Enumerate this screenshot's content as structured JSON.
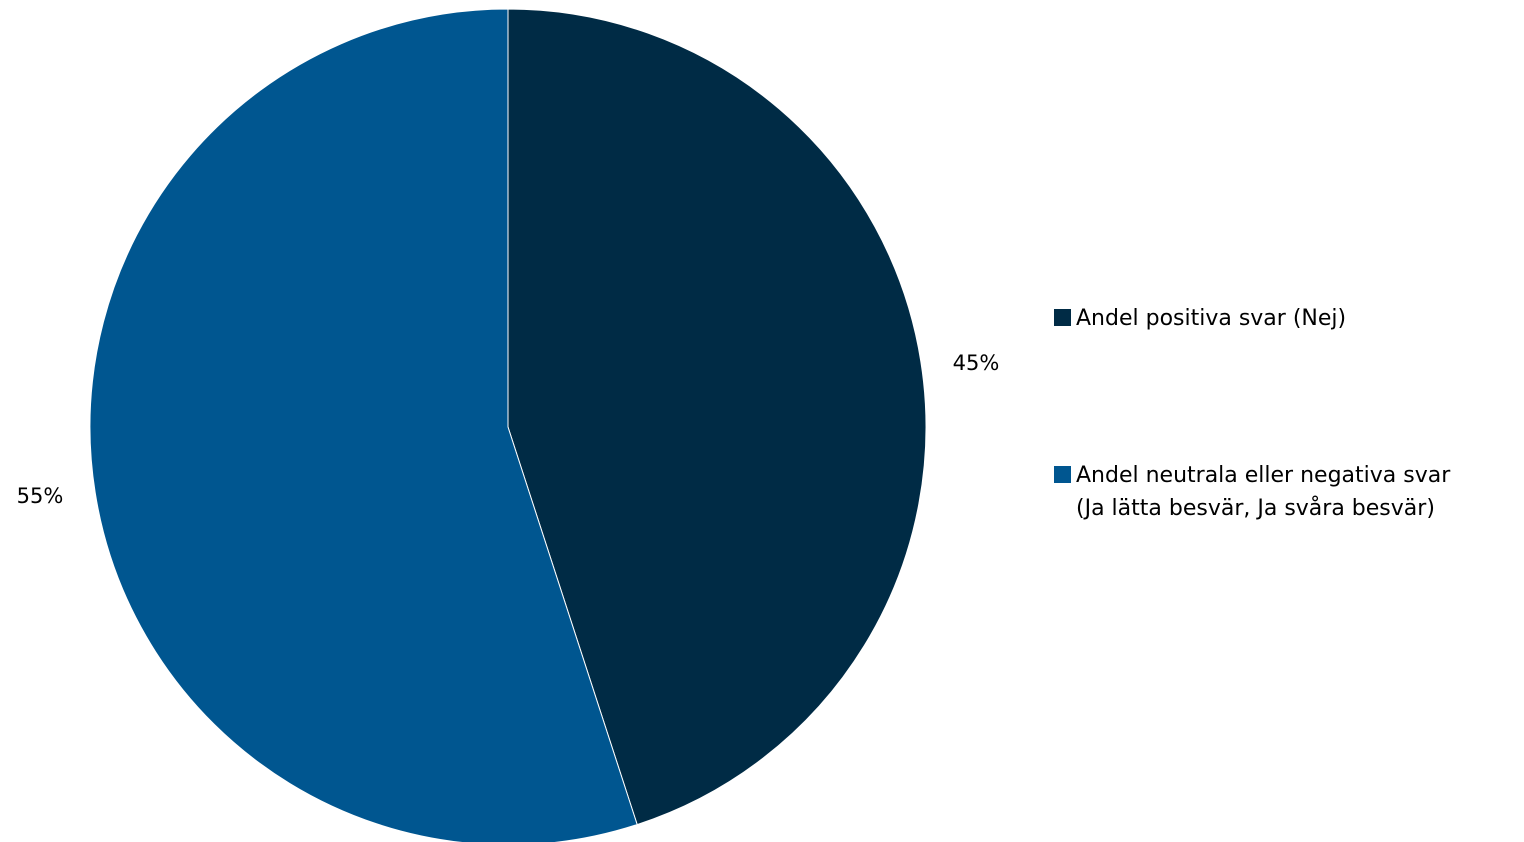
{
  "chart_data": {
    "type": "pie",
    "title": "",
    "start_angle_deg": 0,
    "direction": "clockwise",
    "slices": [
      {
        "name": "Andel positiva svar (Nej)",
        "value": 45,
        "label": "45%",
        "color": "#002b45"
      },
      {
        "name": "Andel neutrala eller negativa svar (Ja lätta besvär, Ja svåra besvär)",
        "legend_lines": [
          "Andel neutrala eller negativa svar",
          "(Ja lätta besvär, Ja svåra besvär)"
        ],
        "value": 55,
        "label": "55%",
        "color": "#005690"
      }
    ],
    "legend_position": "right"
  }
}
